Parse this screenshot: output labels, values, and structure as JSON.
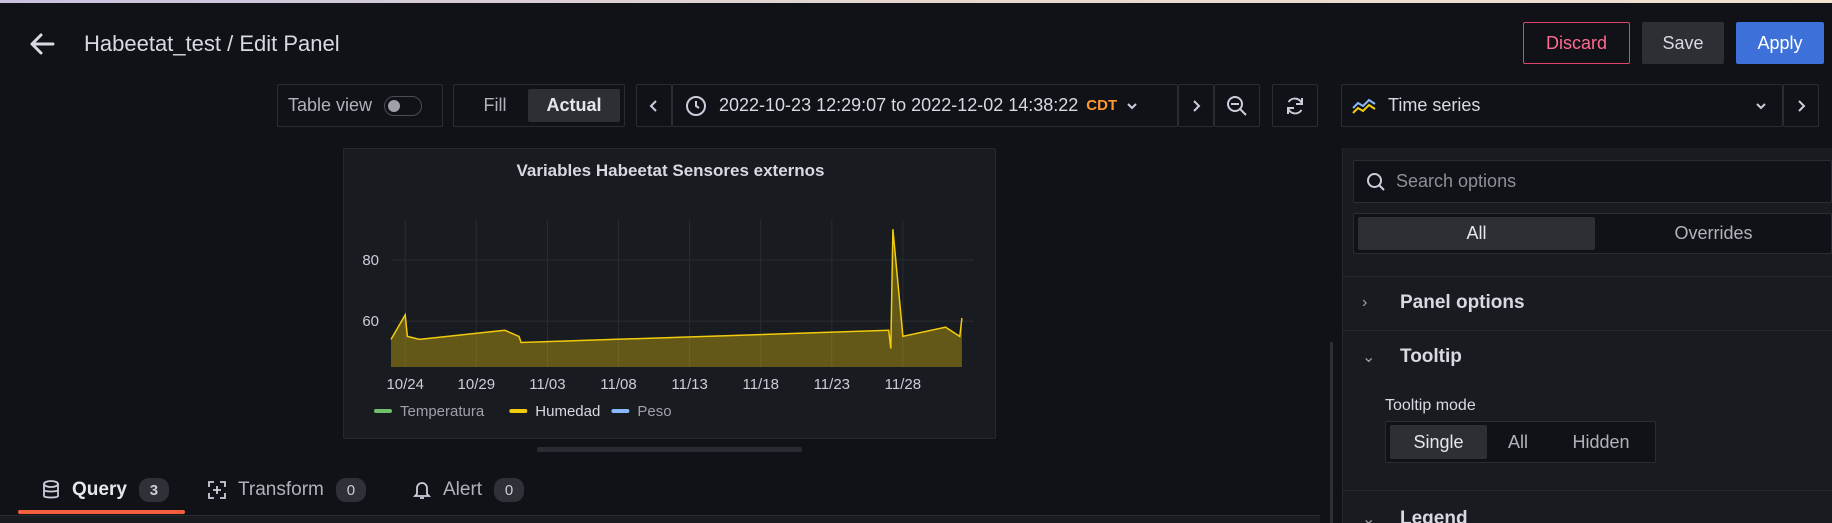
{
  "header": {
    "title": "Habeetat_test / Edit Panel",
    "discard_label": "Discard",
    "save_label": "Save",
    "apply_label": "Apply"
  },
  "toolbar": {
    "table_view_label": "Table view",
    "fill_label": "Fill",
    "actual_label": "Actual",
    "time_range": "2022-10-23 12:29:07 to 2022-12-02 14:38:22",
    "timezone": "CDT"
  },
  "visualization": {
    "selected": "Time series"
  },
  "options": {
    "search_placeholder": "Search options",
    "tab_all": "All",
    "tab_overrides": "Overrides",
    "sections": {
      "panel_options": "Panel options",
      "tooltip": "Tooltip",
      "legend": "Legend"
    },
    "tooltip_mode": {
      "label": "Tooltip mode",
      "options": [
        "Single",
        "All",
        "Hidden"
      ],
      "selected": "Single"
    }
  },
  "bottom_tabs": [
    {
      "label": "Query",
      "count": "3",
      "active": true
    },
    {
      "label": "Transform",
      "count": "0",
      "active": false
    },
    {
      "label": "Alert",
      "count": "0",
      "active": false
    }
  ],
  "colors": {
    "background": "#111217",
    "panel_bg": "#181b1f",
    "humedad": "#f2cc0c",
    "temperatura": "#73bf69",
    "peso": "#8ab8ff",
    "primary": "#3d71d9",
    "discard": "#e0436b",
    "timezone": "#ff9830",
    "active_tab": "#f55f3e"
  },
  "chart_data": {
    "type": "line",
    "title": "Variables Habeetat Sensores externos",
    "x_ticks": [
      "10/24",
      "10/29",
      "11/03",
      "11/08",
      "11/13",
      "11/18",
      "11/23",
      "11/28"
    ],
    "y_ticks": [
      "60",
      "80"
    ],
    "ylim": [
      45,
      93
    ],
    "legend": [
      {
        "name": "Temperatura",
        "color": "#73bf69"
      },
      {
        "name": "Humedad",
        "color": "#f2cc0c"
      },
      {
        "name": "Peso",
        "color": "#8ab8ff"
      }
    ],
    "legend_position": "bottom",
    "grid": true,
    "series": [
      {
        "name": "Humedad",
        "x": [
          "2022-10-23",
          "2022-10-24",
          "2022-10-24",
          "2022-10-25",
          "2022-10-31",
          "2022-11-01",
          "2022-11-01",
          "2022-11-27",
          "2022-11-27",
          "2022-11-27",
          "2022-11-28",
          "2022-12-01",
          "2022-12-02",
          "2022-12-02"
        ],
        "y": [
          54,
          62,
          55,
          54,
          57,
          55,
          53,
          57,
          51,
          90,
          55,
          58,
          55,
          61
        ]
      }
    ]
  }
}
